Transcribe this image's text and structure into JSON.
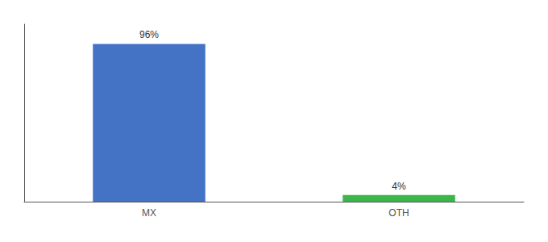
{
  "chart_data": {
    "type": "bar",
    "categories": [
      "MX",
      "OTH"
    ],
    "values": [
      96,
      4
    ],
    "value_labels": [
      "96%",
      "4%"
    ],
    "colors": [
      "#4472c4",
      "#3cb54a"
    ],
    "ylim": [
      0,
      108
    ],
    "tick_labels": "x",
    "grid": false
  }
}
